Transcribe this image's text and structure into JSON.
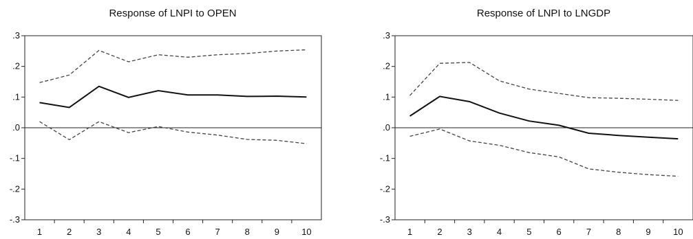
{
  "chart_data": [
    {
      "type": "line",
      "title": "Response of LNPI to OPEN",
      "x": [
        1,
        2,
        3,
        4,
        5,
        6,
        7,
        8,
        9,
        10
      ],
      "ylim": [
        -0.3,
        0.3
      ],
      "yticks": [
        ".3",
        ".2",
        ".1",
        ".0",
        "-.1",
        "-.2",
        "-.3"
      ],
      "xticks": [
        "1",
        "2",
        "3",
        "4",
        "5",
        "6",
        "7",
        "8",
        "9",
        "10"
      ],
      "zero_line": true,
      "series": [
        {
          "role": "upper-band",
          "style": "dashed",
          "values": [
            0.147,
            0.172,
            0.252,
            0.215,
            0.238,
            0.23,
            0.238,
            0.242,
            0.25,
            0.254
          ]
        },
        {
          "role": "response",
          "style": "solid",
          "values": [
            0.082,
            0.066,
            0.135,
            0.099,
            0.121,
            0.107,
            0.107,
            0.102,
            0.103,
            0.1
          ]
        },
        {
          "role": "lower-band",
          "style": "dashed",
          "values": [
            0.02,
            -0.039,
            0.02,
            -0.016,
            0.004,
            -0.014,
            -0.024,
            -0.038,
            -0.041,
            -0.052
          ]
        }
      ]
    },
    {
      "type": "line",
      "title": "Response of LNPI to LNGDP",
      "x": [
        1,
        2,
        3,
        4,
        5,
        6,
        7,
        8,
        9,
        10
      ],
      "ylim": [
        -0.3,
        0.3
      ],
      "yticks": [
        ".3",
        ".2",
        ".1",
        ".0",
        "-.1",
        "-.2",
        "-.3"
      ],
      "xticks": [
        "1",
        "2",
        "3",
        "4",
        "5",
        "6",
        "7",
        "8",
        "9",
        "10"
      ],
      "zero_line": true,
      "series": [
        {
          "role": "upper-band",
          "style": "dashed",
          "values": [
            0.105,
            0.21,
            0.213,
            0.153,
            0.126,
            0.112,
            0.098,
            0.096,
            0.093,
            0.089
          ]
        },
        {
          "role": "response",
          "style": "solid",
          "values": [
            0.038,
            0.102,
            0.085,
            0.048,
            0.022,
            0.008,
            -0.018,
            -0.025,
            -0.031,
            -0.036
          ]
        },
        {
          "role": "lower-band",
          "style": "dashed",
          "values": [
            -0.028,
            -0.004,
            -0.043,
            -0.057,
            -0.081,
            -0.095,
            -0.134,
            -0.145,
            -0.153,
            -0.158
          ]
        }
      ]
    }
  ]
}
